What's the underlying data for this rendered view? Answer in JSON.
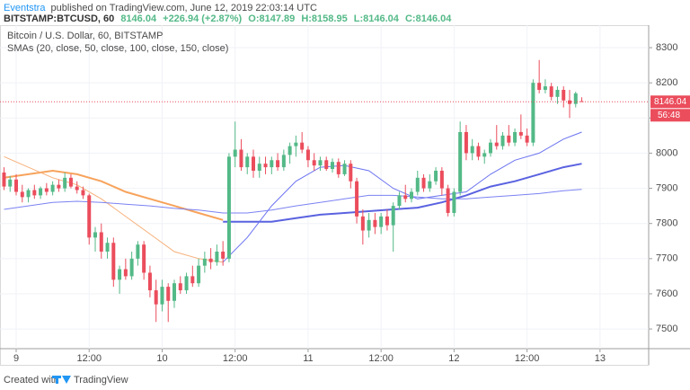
{
  "header": {
    "author": "Eventstra",
    "published": "published on TradingView.com, June 12, 2019 22:03:14 UTC",
    "symbol": "BITSTAMP:BTCUSD, 60",
    "last": "8146.04",
    "change": "+226.94 (+2.87%)",
    "open": "O:8147.89",
    "high": "H:8158.95",
    "low": "L:8146.04",
    "close": "C:8146.04"
  },
  "chart_data": {
    "type": "candlestick",
    "title": "Bitcoin / U.S. Dollar, 60, BITSTAMP",
    "up_color": "#53b987",
    "down_color": "#eb4d5c",
    "grid": true,
    "x": [
      -2,
      -1,
      0,
      1,
      2,
      3,
      4,
      5,
      6,
      7,
      8,
      9,
      10,
      11,
      12,
      13,
      14,
      15,
      16,
      17,
      18,
      19,
      20,
      21,
      22,
      23,
      24,
      25,
      26,
      27,
      28,
      29,
      30,
      31,
      32,
      33,
      34,
      35,
      36,
      37,
      38,
      39,
      40,
      41,
      42,
      43,
      44,
      45,
      46,
      47,
      48,
      49,
      50,
      51,
      52,
      53,
      54,
      55,
      56,
      57,
      58,
      59,
      60,
      61,
      62,
      63,
      64,
      65,
      66,
      67,
      68,
      69,
      70,
      71,
      72,
      73,
      74,
      75,
      76,
      77,
      78,
      79,
      80,
      81,
      82,
      83,
      84,
      85,
      86,
      87,
      88,
      89,
      90,
      91,
      92,
      93
    ],
    "open": [
      7945,
      7905,
      7925,
      7890,
      7875,
      7895,
      7880,
      7900,
      7890,
      7910,
      7900,
      7930,
      7905,
      7895,
      7880,
      7760,
      7775,
      7720,
      7745,
      7640,
      7670,
      7650,
      7700,
      7740,
      7660,
      7610,
      7570,
      7620,
      7580,
      7630,
      7610,
      7650,
      7630,
      7680,
      7700,
      7690,
      7720,
      7700,
      7990,
      8010,
      7960,
      7990,
      7950,
      7970,
      7960,
      7980,
      7960,
      7995,
      8020,
      8030,
      8010,
      7980,
      7965,
      7980,
      7955,
      7975,
      7940,
      7970,
      7920,
      7820,
      7780,
      7810,
      7790,
      7820,
      7795,
      7850,
      7880,
      7870,
      7890,
      7930,
      7900,
      7920,
      7950,
      7900,
      7830,
      7890,
      8060,
      8000,
      8020,
      7990,
      8000,
      8030,
      8020,
      8050,
      8030,
      8060,
      8050,
      8030,
      8200,
      8180,
      8190,
      8160,
      8180,
      8150,
      8140,
      8147.89
    ],
    "high": [
      7960,
      7935,
      7940,
      7910,
      7900,
      7910,
      7905,
      7915,
      7920,
      7925,
      7945,
      7940,
      7920,
      7905,
      7885,
      7790,
      7800,
      7760,
      7760,
      7680,
      7700,
      7720,
      7750,
      7750,
      7680,
      7640,
      7640,
      7630,
      7640,
      7650,
      7660,
      7680,
      7700,
      7720,
      7730,
      7740,
      7750,
      8000,
      8090,
      8040,
      8000,
      8010,
      7990,
      7990,
      7990,
      8000,
      8010,
      8030,
      8050,
      8060,
      8020,
      8000,
      7990,
      7990,
      7985,
      7985,
      7980,
      7980,
      7930,
      7840,
      7830,
      7830,
      7830,
      7840,
      7860,
      7890,
      7910,
      7900,
      7950,
      7940,
      7940,
      7960,
      7960,
      7910,
      7900,
      8090,
      8080,
      8040,
      8030,
      8010,
      8040,
      8080,
      8060,
      8080,
      8070,
      8110,
      8070,
      8210,
      8265,
      8210,
      8200,
      8190,
      8190,
      8180,
      8175,
      8158.95
    ],
    "low": [
      7895,
      7890,
      7880,
      7860,
      7860,
      7870,
      7870,
      7880,
      7880,
      7890,
      7890,
      7900,
      7885,
      7870,
      7740,
      7720,
      7700,
      7700,
      7620,
      7600,
      7640,
      7640,
      7680,
      7640,
      7590,
      7520,
      7550,
      7520,
      7560,
      7600,
      7600,
      7620,
      7620,
      7660,
      7670,
      7680,
      7680,
      7690,
      7960,
      7950,
      7940,
      7930,
      7930,
      7940,
      7940,
      7950,
      7950,
      7970,
      7990,
      8000,
      7960,
      7950,
      7950,
      7950,
      7945,
      7930,
      7935,
      7900,
      7800,
      7740,
      7760,
      7770,
      7770,
      7780,
      7720,
      7840,
      7860,
      7860,
      7880,
      7890,
      7890,
      7910,
      7880,
      7820,
      7820,
      7880,
      7980,
      7980,
      7980,
      7970,
      7990,
      8010,
      8010,
      8020,
      8020,
      8040,
      8020,
      8020,
      8170,
      8170,
      8150,
      8140,
      8130,
      8100,
      8130,
      8146.04
    ],
    "close": [
      7905,
      7925,
      7890,
      7875,
      7895,
      7880,
      7900,
      7890,
      7910,
      7900,
      7930,
      7905,
      7895,
      7880,
      7760,
      7775,
      7720,
      7745,
      7640,
      7670,
      7650,
      7700,
      7740,
      7660,
      7610,
      7570,
      7620,
      7580,
      7630,
      7610,
      7650,
      7630,
      7680,
      7700,
      7690,
      7720,
      7700,
      7990,
      8010,
      7960,
      7990,
      7950,
      7970,
      7960,
      7980,
      7960,
      7995,
      8020,
      8030,
      8010,
      7980,
      7965,
      7980,
      7955,
      7975,
      7940,
      7970,
      7920,
      7820,
      7780,
      7810,
      7790,
      7820,
      7795,
      7850,
      7880,
      7870,
      7890,
      7930,
      7900,
      7920,
      7950,
      7900,
      7830,
      7890,
      8060,
      8000,
      8020,
      7990,
      8000,
      8030,
      8020,
      8050,
      8030,
      8060,
      8050,
      8030,
      8200,
      8180,
      8190,
      8160,
      8180,
      8150,
      8140,
      8170,
      8146.04
    ],
    "xlim": [
      -2.66,
      104
    ],
    "ylim": [
      7444,
      8364
    ],
    "xticks": [
      {
        "value": 0,
        "label": "9"
      },
      {
        "value": 12,
        "label": "12:00"
      },
      {
        "value": 24,
        "label": "10"
      },
      {
        "value": 36,
        "label": "12:00"
      },
      {
        "value": 48,
        "label": "11"
      },
      {
        "value": 60,
        "label": "12:00"
      },
      {
        "value": 72,
        "label": "12"
      },
      {
        "value": 84,
        "label": "12:00"
      },
      {
        "value": 96,
        "label": "13"
      }
    ],
    "yticks": [
      7500,
      7600,
      7700,
      7800,
      7900,
      8000,
      8100,
      8200,
      8300
    ],
    "last_price": 8146.04,
    "countdown": "56:48",
    "sma": {
      "label": "SMAs (20, close, 50, close, 100, close, 150, close)",
      "x": [
        -2,
        2,
        6,
        10,
        14,
        18,
        22,
        26,
        30,
        34,
        38,
        42,
        46,
        50,
        54,
        58,
        62,
        66,
        70,
        74,
        78,
        82,
        86,
        90,
        93
      ],
      "lines": [
        {
          "color": "#f7a35c",
          "width": 2,
          "values": [
            7930,
            7940,
            7950,
            7940,
            7920,
            7890,
            7870,
            7850,
            7830,
            7810,
            null,
            null,
            null,
            null,
            null,
            null,
            null,
            null,
            null,
            null,
            null,
            null,
            null,
            null,
            null
          ]
        },
        {
          "color": "#f7b07a",
          "width": 1,
          "values": [
            7990,
            7960,
            7930,
            7910,
            7870,
            7820,
            7770,
            7720,
            7700,
            7690,
            null,
            null,
            null,
            null,
            null,
            null,
            null,
            null,
            null,
            null,
            null,
            null,
            null,
            null,
            null
          ]
        },
        {
          "color": "#5a62e0",
          "width": 2,
          "values": [
            null,
            null,
            null,
            null,
            null,
            null,
            null,
            null,
            null,
            7805,
            7805,
            7805,
            7815,
            7825,
            7830,
            7835,
            7840,
            7845,
            7860,
            7880,
            7905,
            7920,
            7940,
            7960,
            7970
          ]
        },
        {
          "color": "#6b73f0",
          "width": 1,
          "values": [
            null,
            null,
            null,
            null,
            null,
            null,
            null,
            null,
            null,
            7690,
            7760,
            7850,
            7920,
            7960,
            7965,
            7950,
            7900,
            7870,
            7880,
            7890,
            7940,
            7980,
            8000,
            8040,
            8060
          ]
        },
        {
          "color": "#7b82f2",
          "width": 1,
          "values": [
            7840,
            7850,
            7860,
            7863,
            7860,
            7855,
            7850,
            7843,
            7838,
            7830,
            7830,
            7838,
            7850,
            7860,
            7870,
            7880,
            7880,
            7875,
            7870,
            7870,
            7875,
            7880,
            7885,
            7893,
            7897
          ]
        }
      ]
    }
  },
  "footer": {
    "created": "Created with",
    "brand": "TradingView"
  }
}
